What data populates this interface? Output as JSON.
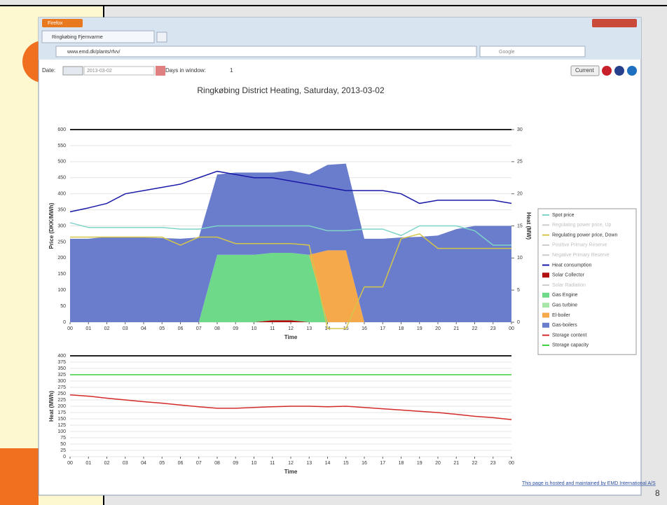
{
  "browser": {
    "app": "Firefox",
    "tab": "Ringkøbing Fjernvarme",
    "url": "www.emd.dk/plants/rfvv/",
    "search": "Google"
  },
  "toolbar": {
    "date_label": "Date:",
    "date": "2013-03-02",
    "days_label": "Days in window:",
    "days": 1,
    "current": "Current"
  },
  "chart_data": [
    {
      "type": "combo",
      "title": "Ringkøbing District Heating, Saturday, 2013-03-02",
      "xlabel": "Time",
      "ylabel": "Price (DKK/MWh)",
      "y2label": "Heat (MW)",
      "x": [
        0,
        1,
        2,
        3,
        4,
        5,
        6,
        7,
        8,
        9,
        10,
        11,
        12,
        13,
        14,
        15,
        16,
        17,
        18,
        19,
        20,
        21,
        22,
        23,
        24
      ],
      "xlim": [
        0,
        24
      ],
      "xticks": [
        {
          "value": 0,
          "label": "00"
        },
        {
          "value": 1,
          "label": "01"
        },
        {
          "value": 2,
          "label": "02"
        },
        {
          "value": 3,
          "label": "03"
        },
        {
          "value": 4,
          "label": "04"
        },
        {
          "value": 5,
          "label": "05"
        },
        {
          "value": 6,
          "label": "06"
        },
        {
          "value": 7,
          "label": "07"
        },
        {
          "value": 8,
          "label": "08"
        },
        {
          "value": 9,
          "label": "09"
        },
        {
          "value": 10,
          "label": "10"
        },
        {
          "value": 11,
          "label": "11"
        },
        {
          "value": 12,
          "label": "12"
        },
        {
          "value": 13,
          "label": "13"
        },
        {
          "value": 14,
          "label": "14"
        },
        {
          "value": 15,
          "label": "15"
        },
        {
          "value": 16,
          "label": "16"
        },
        {
          "value": 17,
          "label": "17"
        },
        {
          "value": 18,
          "label": "18"
        },
        {
          "value": 19,
          "label": "19"
        },
        {
          "value": 20,
          "label": "20"
        },
        {
          "value": 21,
          "label": "21"
        },
        {
          "value": 22,
          "label": "22"
        },
        {
          "value": 23,
          "label": "23"
        },
        {
          "value": 24,
          "label": "00"
        }
      ],
      "ylim": [
        0,
        600
      ],
      "yticks": [
        0,
        50,
        100,
        150,
        200,
        250,
        300,
        350,
        400,
        450,
        500,
        550,
        600
      ],
      "y2lim": [
        0,
        30
      ],
      "y2ticks": [
        0,
        5,
        10,
        15,
        20,
        25,
        30
      ],
      "grid": true,
      "series": [
        {
          "name": "Spot price",
          "color": "#7fd4c8",
          "kind": "line",
          "values": [
            310,
            295,
            295,
            295,
            295,
            295,
            290,
            290,
            300,
            300,
            300,
            300,
            300,
            300,
            285,
            285,
            290,
            290,
            270,
            300,
            300,
            300,
            285,
            240,
            240
          ]
        },
        {
          "name": "Regulating power price, Up",
          "color": "#cccccc"
        },
        {
          "name": "Regulating power price, Down",
          "color": "#d4c64a",
          "kind": "line",
          "values": [
            265,
            265,
            265,
            265,
            265,
            265,
            240,
            265,
            265,
            245,
            245,
            245,
            245,
            240,
            -20,
            -20,
            110,
            110,
            260,
            275,
            230,
            230,
            230,
            230,
            230
          ]
        },
        {
          "name": "Positive Primary Reserve",
          "color": "#cccccc"
        },
        {
          "name": "Negative Primary Reserve",
          "color": "#cccccc"
        },
        {
          "name": "Heat consumption",
          "color": "#1a1aa8",
          "kind": "line",
          "axis": "y2",
          "values": [
            17.2,
            17.8,
            18.5,
            20,
            20.5,
            21,
            21.5,
            22.5,
            23.5,
            23,
            22.5,
            22.5,
            22,
            21.5,
            21,
            20.5,
            20.5,
            20.5,
            20,
            18.5,
            19,
            19,
            19,
            19,
            18.5
          ]
        },
        {
          "name": "Solar Collector",
          "color": "#b01010",
          "kind": "area",
          "axis": "y2",
          "values": [
            0,
            0,
            0,
            0,
            0,
            0,
            0,
            0,
            0,
            0,
            0,
            0.3,
            0.3,
            0,
            0,
            0,
            0,
            0,
            0,
            0,
            0,
            0,
            0,
            0,
            0
          ]
        },
        {
          "name": "Solar Radiation",
          "color": "#cccccc"
        },
        {
          "name": "Gas Engine",
          "color": "#6fd98a",
          "kind": "area",
          "axis": "y2",
          "values": [
            0,
            0,
            0,
            0,
            0,
            0,
            0,
            0,
            10.5,
            10.5,
            10.5,
            10.5,
            10.5,
            10.5,
            0,
            0,
            0,
            0,
            0,
            0,
            0,
            0,
            0,
            0,
            0
          ]
        },
        {
          "name": "Gas turbine",
          "color": "#a8e6a8",
          "kind": "area",
          "axis": "y2",
          "values": [
            0,
            0,
            0,
            0,
            0,
            0,
            0,
            0,
            0,
            0,
            0,
            0,
            0,
            0,
            0,
            0,
            0,
            0,
            0,
            0,
            0,
            0,
            0,
            0,
            0
          ]
        },
        {
          "name": "El-boiler",
          "color": "#f5a94a",
          "kind": "area",
          "axis": "y2",
          "values": [
            0,
            0,
            0,
            0,
            0,
            0,
            0,
            0,
            0,
            0,
            0,
            0,
            0,
            0,
            11.2,
            11.2,
            0,
            0,
            0,
            0,
            0,
            0,
            0,
            0,
            0
          ]
        },
        {
          "name": "Gas-boilers",
          "color": "#6a7ccc",
          "kind": "area",
          "axis": "y2",
          "values": [
            13,
            13,
            13.3,
            13.3,
            13.2,
            13.1,
            13,
            13.2,
            12.5,
            12.8,
            12.8,
            12.5,
            12.8,
            12.5,
            13.3,
            13.5,
            13,
            13,
            13.2,
            13.3,
            13.5,
            14.5,
            15,
            15,
            15
          ]
        }
      ]
    },
    {
      "type": "line",
      "xlabel": "Time",
      "ylabel": "Heat (MWh)",
      "x": [
        0,
        1,
        2,
        3,
        4,
        5,
        6,
        7,
        8,
        9,
        10,
        11,
        12,
        13,
        14,
        15,
        16,
        17,
        18,
        19,
        20,
        21,
        22,
        23,
        24
      ],
      "xlim": [
        0,
        24
      ],
      "xticks": [
        {
          "value": 0,
          "label": "00"
        },
        {
          "value": 1,
          "label": "01"
        },
        {
          "value": 2,
          "label": "02"
        },
        {
          "value": 3,
          "label": "03"
        },
        {
          "value": 4,
          "label": "04"
        },
        {
          "value": 5,
          "label": "05"
        },
        {
          "value": 6,
          "label": "06"
        },
        {
          "value": 7,
          "label": "07"
        },
        {
          "value": 8,
          "label": "08"
        },
        {
          "value": 9,
          "label": "09"
        },
        {
          "value": 10,
          "label": "10"
        },
        {
          "value": 11,
          "label": "11"
        },
        {
          "value": 12,
          "label": "12"
        },
        {
          "value": 13,
          "label": "13"
        },
        {
          "value": 14,
          "label": "14"
        },
        {
          "value": 15,
          "label": "15"
        },
        {
          "value": 16,
          "label": "16"
        },
        {
          "value": 17,
          "label": "17"
        },
        {
          "value": 18,
          "label": "18"
        },
        {
          "value": 19,
          "label": "19"
        },
        {
          "value": 20,
          "label": "20"
        },
        {
          "value": 21,
          "label": "21"
        },
        {
          "value": 22,
          "label": "22"
        },
        {
          "value": 23,
          "label": "23"
        },
        {
          "value": 24,
          "label": "00"
        }
      ],
      "ylim": [
        0,
        400
      ],
      "yticks": [
        0,
        25,
        50,
        75,
        100,
        125,
        150,
        175,
        200,
        225,
        250,
        275,
        300,
        325,
        350,
        375,
        400
      ],
      "grid": true,
      "series": [
        {
          "name": "Storage content",
          "color": "#d42a2a",
          "kind": "line",
          "values": [
            245,
            240,
            232,
            225,
            218,
            212,
            205,
            198,
            192,
            192,
            195,
            198,
            200,
            200,
            198,
            200,
            195,
            190,
            185,
            180,
            175,
            168,
            160,
            155,
            147
          ]
        },
        {
          "name": "Storage capacity",
          "color": "#3ccf3c",
          "kind": "line",
          "values": [
            325,
            325,
            325,
            325,
            325,
            325,
            325,
            325,
            325,
            325,
            325,
            325,
            325,
            325,
            325,
            325,
            325,
            325,
            325,
            325,
            325,
            325,
            325,
            325,
            325
          ]
        }
      ]
    }
  ],
  "footer": "This page is hosted and maintained by EMD International A/S",
  "slide_number": 8
}
